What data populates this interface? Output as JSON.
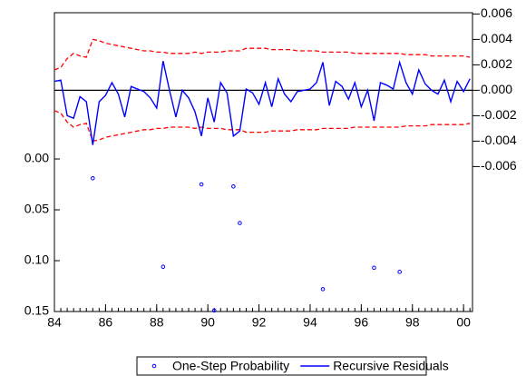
{
  "chart_data": {
    "type": "line",
    "x": [
      1984,
      1984.25,
      1984.5,
      1984.75,
      1985,
      1985.25,
      1985.5,
      1985.75,
      1986,
      1986.25,
      1986.5,
      1986.75,
      1987,
      1987.25,
      1987.5,
      1987.75,
      1988,
      1988.25,
      1988.5,
      1988.75,
      1989,
      1989.25,
      1989.5,
      1989.75,
      1990,
      1990.25,
      1990.5,
      1990.75,
      1991,
      1991.25,
      1991.5,
      1991.75,
      1992,
      1992.25,
      1992.5,
      1992.75,
      1993,
      1993.25,
      1993.5,
      1993.75,
      1994,
      1994.25,
      1994.5,
      1994.75,
      1995,
      1995.25,
      1995.5,
      1995.75,
      1996,
      1996.25,
      1996.5,
      1996.75,
      1997,
      1997.25,
      1997.5,
      1997.75,
      1998,
      1998.25,
      1998.5,
      1998.75,
      1999,
      1999.25,
      1999.5,
      1999.75,
      2000,
      2000.25
    ],
    "series": [
      {
        "name": "One-Step Probability",
        "type": "scatter",
        "color": "#0000ff",
        "axis": "y",
        "x": [
          1985.5,
          1988.25,
          1989.75,
          1990.25,
          1991,
          1991.25,
          1994.5,
          1996.5,
          1997.5
        ],
        "values": [
          0.019,
          0.106,
          0.025,
          0.149,
          0.027,
          0.063,
          0.128,
          0.107,
          0.111
        ]
      },
      {
        "name": "Recursive Residuals",
        "type": "line",
        "color": "#0000ff",
        "axis": "y2",
        "values": [
          0.0007,
          0.0008,
          -0.002,
          -0.0022,
          -0.0005,
          -0.0009,
          -0.0043,
          -0.0009,
          -0.0004,
          0.0006,
          -0.0003,
          -0.0021,
          0.0003,
          0.0001,
          -0.0001,
          -0.0006,
          -0.0014,
          0.0023,
          0,
          -0.0021,
          0,
          -0.0006,
          -0.0017,
          -0.0036,
          -0.0006,
          -0.0025,
          0.0006,
          -0.0002,
          -0.0036,
          -0.0032,
          0.0001,
          -0.0002,
          -0.0011,
          0.0006,
          -0.0013,
          0.0009,
          -0.0003,
          -0.0009,
          -0.0001,
          0,
          0.0001,
          0.0006,
          0.0022,
          -0.0012,
          0.0007,
          0.0003,
          -0.0007,
          0.0006,
          -0.0013,
          0,
          -0.0024,
          0.0006,
          0.0004,
          0.0001,
          0.0022,
          0.0006,
          -0.0003,
          0.0016,
          0.0005,
          0,
          -0.0003,
          0.0008,
          -0.0009,
          0.0007,
          -0.0001,
          0.0009
        ]
      }
    ],
    "band": {
      "color": "#ff0000",
      "axis": "y2",
      "upper": [
        0.0016,
        0.0018,
        0.0025,
        0.0029,
        0.0027,
        0.0026,
        0.004,
        0.0039,
        0.0037,
        0.0036,
        0.0035,
        0.0034,
        0.0033,
        0.0032,
        0.0031,
        0.0031,
        0.003,
        0.003,
        0.0029,
        0.0029,
        0.0029,
        0.0029,
        0.003,
        0.0029,
        0.003,
        0.003,
        0.003,
        0.0031,
        0.0031,
        0.0031,
        0.0033,
        0.0033,
        0.0033,
        0.0033,
        0.0032,
        0.0032,
        0.0032,
        0.0032,
        0.0031,
        0.0031,
        0.0031,
        0.0031,
        0.003,
        0.003,
        0.003,
        0.003,
        0.003,
        0.0029,
        0.0029,
        0.0029,
        0.0029,
        0.0029,
        0.0029,
        0.0029,
        0.0029,
        0.0028,
        0.0028,
        0.0028,
        0.0028,
        0.0027,
        0.0027,
        0.0027,
        0.0027,
        0.0027,
        0.0027,
        0.0026
      ],
      "lower": [
        -0.0016,
        -0.0018,
        -0.0025,
        -0.0029,
        -0.0027,
        -0.0026,
        -0.004,
        -0.0039,
        -0.0037,
        -0.0036,
        -0.0035,
        -0.0034,
        -0.0033,
        -0.0032,
        -0.0031,
        -0.0031,
        -0.003,
        -0.003,
        -0.0029,
        -0.0029,
        -0.0029,
        -0.0029,
        -0.003,
        -0.0029,
        -0.003,
        -0.003,
        -0.003,
        -0.0031,
        -0.0031,
        -0.0031,
        -0.0033,
        -0.0033,
        -0.0033,
        -0.0033,
        -0.0032,
        -0.0032,
        -0.0032,
        -0.0032,
        -0.0031,
        -0.0031,
        -0.0031,
        -0.0031,
        -0.003,
        -0.003,
        -0.003,
        -0.003,
        -0.003,
        -0.0029,
        -0.0029,
        -0.0029,
        -0.0029,
        -0.0029,
        -0.0029,
        -0.0029,
        -0.0029,
        -0.0028,
        -0.0028,
        -0.0028,
        -0.0028,
        -0.0027,
        -0.0027,
        -0.0027,
        -0.0027,
        -0.0027,
        -0.0027,
        -0.0026
      ]
    },
    "xlim": [
      1984,
      2000.35
    ],
    "xticks": [
      {
        "value": 1984,
        "label": "84"
      },
      {
        "value": 1986,
        "label": "86"
      },
      {
        "value": 1988,
        "label": "88"
      },
      {
        "value": 1990,
        "label": "90"
      },
      {
        "value": 1992,
        "label": "92"
      },
      {
        "value": 1994,
        "label": "94"
      },
      {
        "value": 1996,
        "label": "96"
      },
      {
        "value": 1998,
        "label": "98"
      },
      {
        "value": 2000,
        "label": "00"
      }
    ],
    "ylim": [
      0.15,
      -0.1438
    ],
    "yticks": [
      {
        "value": 0,
        "label": "0.00"
      },
      0.05,
      {
        "value": 0.1,
        "label": "0.10"
      },
      0.15
    ],
    "y2lim": [
      -0.0174,
      0.0061
    ],
    "y2ticks": [
      0.006,
      0.004,
      0.002,
      {
        "value": 0,
        "label": "0.000"
      },
      -0.002,
      -0.004,
      -0.006
    ],
    "zero_line": true
  }
}
